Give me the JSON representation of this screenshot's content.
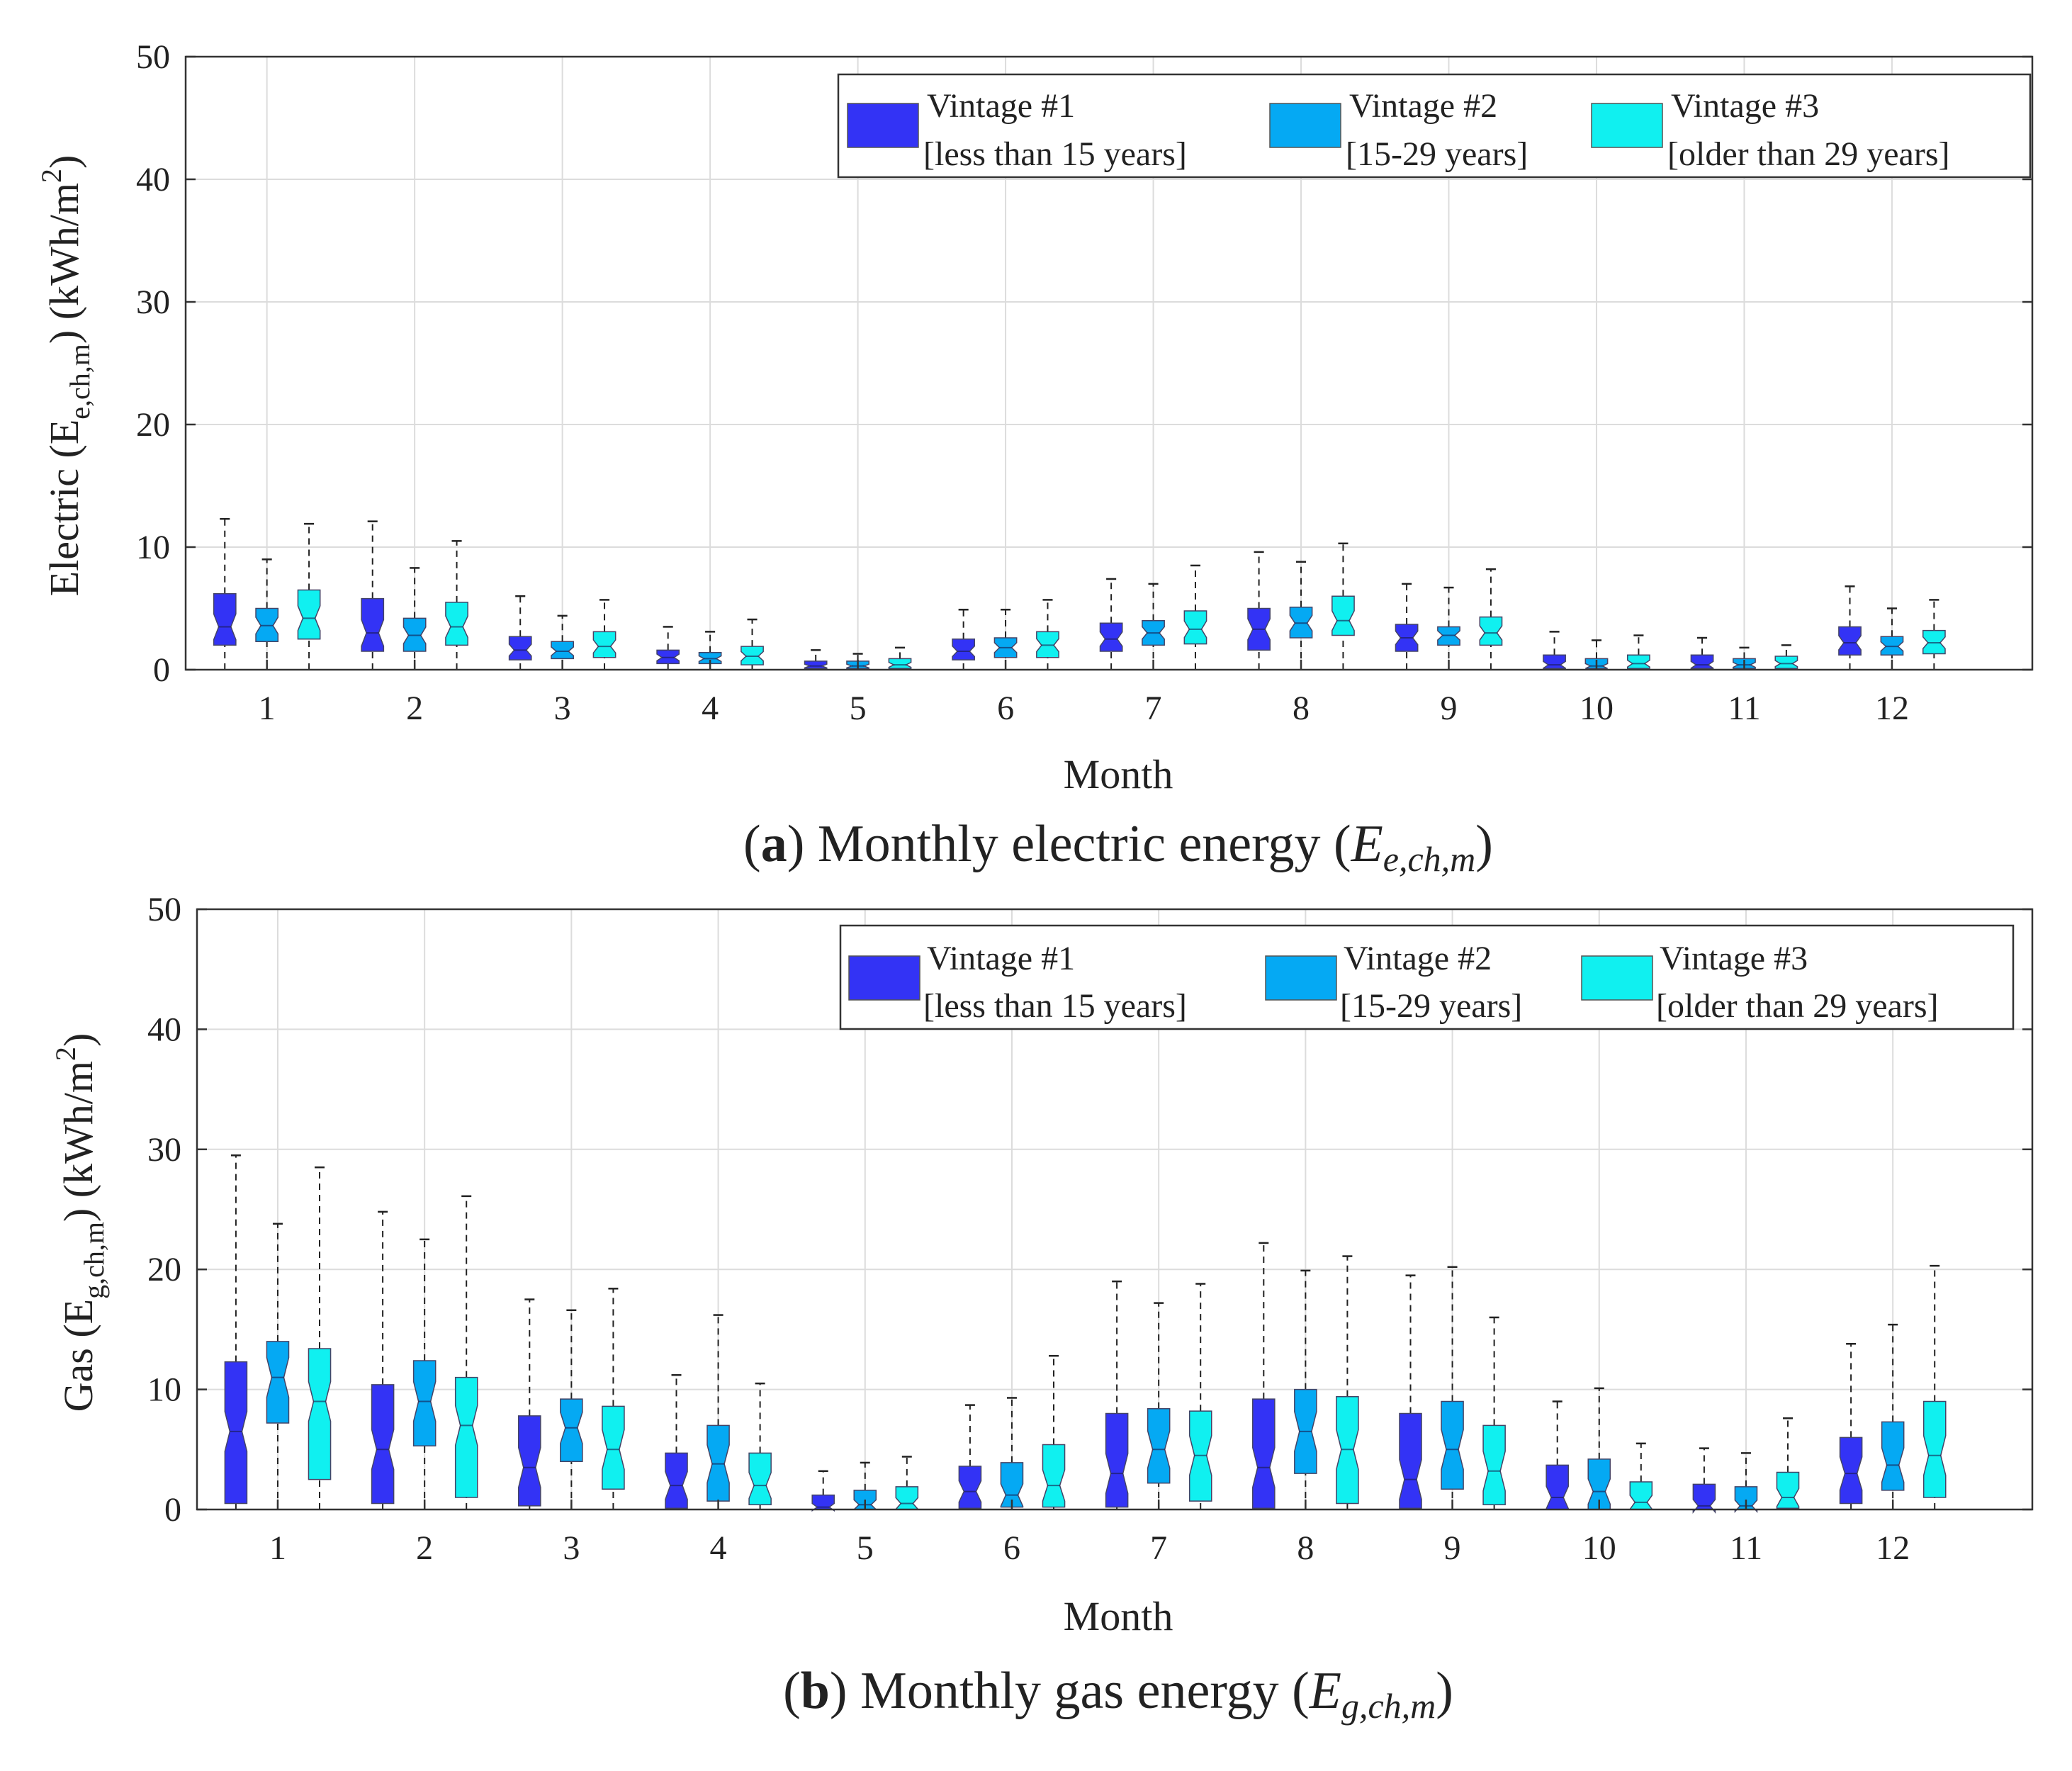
{
  "colors": {
    "vintage1": "#3333f5",
    "vintage2": "#05a9f3",
    "vintage3": "#10f0f0",
    "axis": "#333333",
    "grid": "#dcdcdc",
    "whisker": "#222222"
  },
  "legend": [
    {
      "title": "Vintage #1",
      "range": "[less than 15 years]"
    },
    {
      "title": "Vintage #2",
      "range": "[15-29 years]"
    },
    {
      "title": "Vintage #3",
      "range": "[older than 29 years]"
    }
  ],
  "chart_data": [
    {
      "type": "boxplot",
      "panel": "a",
      "title": "Monthly electric energy",
      "caption_letter": "a",
      "caption_text": ") Monthly electric energy (",
      "caption_symbol": "E",
      "caption_symbol_sub": "e,ch,m",
      "xlabel": "Month",
      "ylabel_prefix": "Electric (E",
      "ylabel_sub": "e,ch,m",
      "ylabel_suffix": ") (kWh/m",
      "ylabel_sup": "2",
      "ylabel_close": ")",
      "ylim": [
        0,
        50
      ],
      "yticks": [
        0,
        10,
        20,
        30,
        40,
        50
      ],
      "categories": [
        "1",
        "2",
        "3",
        "4",
        "5",
        "6",
        "7",
        "8",
        "9",
        "10",
        "11",
        "12"
      ],
      "series": [
        {
          "name": "Vintage #1",
          "boxes": [
            {
              "low": 0,
              "q1": 2.0,
              "median": 3.5,
              "q3": 6.2,
              "high": 12.3
            },
            {
              "low": 0,
              "q1": 1.5,
              "median": 3.0,
              "q3": 5.8,
              "high": 12.1
            },
            {
              "low": 0,
              "q1": 0.8,
              "median": 1.6,
              "q3": 2.7,
              "high": 6.0
            },
            {
              "low": 0,
              "q1": 0.5,
              "median": 1.0,
              "q3": 1.6,
              "high": 3.5
            },
            {
              "low": 0,
              "q1": 0.1,
              "median": 0.3,
              "q3": 0.7,
              "high": 1.6
            },
            {
              "low": 0,
              "q1": 0.8,
              "median": 1.5,
              "q3": 2.5,
              "high": 4.9
            },
            {
              "low": 0,
              "q1": 1.5,
              "median": 2.5,
              "q3": 3.8,
              "high": 7.4
            },
            {
              "low": 0,
              "q1": 1.6,
              "median": 3.3,
              "q3": 5.0,
              "high": 9.6
            },
            {
              "low": 0,
              "q1": 1.5,
              "median": 2.6,
              "q3": 3.7,
              "high": 7.0
            },
            {
              "low": 0,
              "q1": 0.1,
              "median": 0.4,
              "q3": 1.2,
              "high": 3.1
            },
            {
              "low": 0,
              "q1": 0.1,
              "median": 0.4,
              "q3": 1.2,
              "high": 2.6
            },
            {
              "low": 0,
              "q1": 1.2,
              "median": 2.2,
              "q3": 3.5,
              "high": 6.8
            }
          ]
        },
        {
          "name": "Vintage #2",
          "boxes": [
            {
              "low": 0,
              "q1": 2.3,
              "median": 3.6,
              "q3": 5.0,
              "high": 9.0
            },
            {
              "low": 0,
              "q1": 1.5,
              "median": 2.8,
              "q3": 4.2,
              "high": 8.3
            },
            {
              "low": 0,
              "q1": 0.9,
              "median": 1.5,
              "q3": 2.3,
              "high": 4.4
            },
            {
              "low": 0,
              "q1": 0.5,
              "median": 0.9,
              "q3": 1.4,
              "high": 3.1
            },
            {
              "low": 0,
              "q1": 0.1,
              "median": 0.3,
              "q3": 0.7,
              "high": 1.3
            },
            {
              "low": 0,
              "q1": 1.0,
              "median": 1.8,
              "q3": 2.6,
              "high": 4.9
            },
            {
              "low": 0,
              "q1": 2.0,
              "median": 3.0,
              "q3": 4.0,
              "high": 7.0
            },
            {
              "low": 0,
              "q1": 2.6,
              "median": 3.8,
              "q3": 5.1,
              "high": 8.8
            },
            {
              "low": 0,
              "q1": 2.0,
              "median": 2.8,
              "q3": 3.5,
              "high": 6.7
            },
            {
              "low": 0,
              "q1": 0.1,
              "median": 0.3,
              "q3": 0.9,
              "high": 2.4
            },
            {
              "low": 0,
              "q1": 0.1,
              "median": 0.4,
              "q3": 0.9,
              "high": 1.8
            },
            {
              "low": 0,
              "q1": 1.2,
              "median": 1.9,
              "q3": 2.7,
              "high": 5.0
            }
          ]
        },
        {
          "name": "Vintage #3",
          "boxes": [
            {
              "low": 0,
              "q1": 2.5,
              "median": 4.2,
              "q3": 6.5,
              "high": 11.9
            },
            {
              "low": 0,
              "q1": 2.0,
              "median": 3.5,
              "q3": 5.5,
              "high": 10.5
            },
            {
              "low": 0,
              "q1": 1.0,
              "median": 1.9,
              "q3": 3.1,
              "high": 5.7
            },
            {
              "low": 0,
              "q1": 0.4,
              "median": 1.1,
              "q3": 1.9,
              "high": 4.1
            },
            {
              "low": 0,
              "q1": 0.1,
              "median": 0.4,
              "q3": 0.9,
              "high": 1.8
            },
            {
              "low": 0,
              "q1": 1.0,
              "median": 2.0,
              "q3": 3.1,
              "high": 5.7
            },
            {
              "low": 0,
              "q1": 2.1,
              "median": 3.3,
              "q3": 4.8,
              "high": 8.5
            },
            {
              "low": 0,
              "q1": 2.8,
              "median": 4.0,
              "q3": 6.0,
              "high": 10.3
            },
            {
              "low": 0,
              "q1": 2.0,
              "median": 3.0,
              "q3": 4.3,
              "high": 8.2
            },
            {
              "low": 0,
              "q1": 0.1,
              "median": 0.5,
              "q3": 1.2,
              "high": 2.8
            },
            {
              "low": 0,
              "q1": 0.1,
              "median": 0.5,
              "q3": 1.1,
              "high": 2.0
            },
            {
              "low": 0,
              "q1": 1.3,
              "median": 2.2,
              "q3": 3.2,
              "high": 5.7
            }
          ]
        }
      ]
    },
    {
      "type": "boxplot",
      "panel": "b",
      "title": "Monthly gas energy",
      "caption_letter": "b",
      "caption_text": ") Monthly gas energy (",
      "caption_symbol": "E",
      "caption_symbol_sub": "g,ch,m",
      "xlabel": "Month",
      "ylabel_prefix": "Gas (E",
      "ylabel_sub": "g,ch,m",
      "ylabel_suffix": ") (kWh/m",
      "ylabel_sup": "2",
      "ylabel_close": ")",
      "ylim": [
        0,
        50
      ],
      "yticks": [
        0,
        10,
        20,
        30,
        40,
        50
      ],
      "categories": [
        "1",
        "2",
        "3",
        "4",
        "5",
        "6",
        "7",
        "8",
        "9",
        "10",
        "11",
        "12"
      ],
      "series": [
        {
          "name": "Vintage #1",
          "boxes": [
            {
              "low": 0,
              "q1": 0.5,
              "median": 6.5,
              "q3": 12.3,
              "high": 29.5
            },
            {
              "low": 0,
              "q1": 0.5,
              "median": 5.0,
              "q3": 10.4,
              "high": 24.8
            },
            {
              "low": 0,
              "q1": 0.3,
              "median": 3.5,
              "q3": 7.8,
              "high": 17.5
            },
            {
              "low": 0,
              "q1": 0.1,
              "median": 2.0,
              "q3": 4.7,
              "high": 11.2
            },
            {
              "low": 0,
              "q1": 0.0,
              "median": 0.2,
              "q3": 1.2,
              "high": 3.2
            },
            {
              "low": 0,
              "q1": 0.1,
              "median": 1.5,
              "q3": 3.6,
              "high": 8.7
            },
            {
              "low": 0,
              "q1": 0.2,
              "median": 3.0,
              "q3": 8.0,
              "high": 19.0
            },
            {
              "low": 0,
              "q1": 0.1,
              "median": 3.5,
              "q3": 9.2,
              "high": 22.2
            },
            {
              "low": 0,
              "q1": 0.1,
              "median": 2.5,
              "q3": 8.0,
              "high": 19.5
            },
            {
              "low": 0,
              "q1": 0.0,
              "median": 1.0,
              "q3": 3.7,
              "high": 9.0
            },
            {
              "low": 0,
              "q1": 0.0,
              "median": 0.3,
              "q3": 2.1,
              "high": 5.1
            },
            {
              "low": 0,
              "q1": 0.5,
              "median": 3.0,
              "q3": 6.0,
              "high": 13.8
            }
          ]
        },
        {
          "name": "Vintage #2",
          "boxes": [
            {
              "low": 0,
              "q1": 7.2,
              "median": 11.0,
              "q3": 14.0,
              "high": 23.8
            },
            {
              "low": 0,
              "q1": 5.3,
              "median": 9.0,
              "q3": 12.4,
              "high": 22.5
            },
            {
              "low": 0,
              "q1": 4.0,
              "median": 6.8,
              "q3": 9.2,
              "high": 16.6
            },
            {
              "low": 0,
              "q1": 0.7,
              "median": 3.8,
              "q3": 7.0,
              "high": 16.2
            },
            {
              "low": 0,
              "q1": 0.0,
              "median": 0.4,
              "q3": 1.6,
              "high": 3.9
            },
            {
              "low": 0,
              "q1": 0.2,
              "median": 1.2,
              "q3": 3.9,
              "high": 9.3
            },
            {
              "low": 0,
              "q1": 2.2,
              "median": 5.0,
              "q3": 8.4,
              "high": 17.2
            },
            {
              "low": 0,
              "q1": 3.0,
              "median": 6.5,
              "q3": 10.0,
              "high": 19.9
            },
            {
              "low": 0,
              "q1": 1.7,
              "median": 5.0,
              "q3": 9.0,
              "high": 20.2
            },
            {
              "low": 0,
              "q1": 0.0,
              "median": 1.5,
              "q3": 4.2,
              "high": 10.1
            },
            {
              "low": 0,
              "q1": 0.0,
              "median": 0.3,
              "q3": 1.9,
              "high": 4.7
            },
            {
              "low": 0,
              "q1": 1.6,
              "median": 3.7,
              "q3": 7.3,
              "high": 15.4
            }
          ]
        },
        {
          "name": "Vintage #3",
          "boxes": [
            {
              "low": 0,
              "q1": 2.5,
              "median": 9.0,
              "q3": 13.4,
              "high": 28.5
            },
            {
              "low": 0,
              "q1": 1.0,
              "median": 7.0,
              "q3": 11.0,
              "high": 26.1
            },
            {
              "low": 0,
              "q1": 1.7,
              "median": 5.0,
              "q3": 8.6,
              "high": 18.4
            },
            {
              "low": 0,
              "q1": 0.4,
              "median": 2.0,
              "q3": 4.7,
              "high": 10.5
            },
            {
              "low": 0,
              "q1": 0.0,
              "median": 0.5,
              "q3": 1.9,
              "high": 4.4
            },
            {
              "low": 0,
              "q1": 0.2,
              "median": 2.0,
              "q3": 5.4,
              "high": 12.8
            },
            {
              "low": 0,
              "q1": 0.7,
              "median": 4.5,
              "q3": 8.2,
              "high": 18.8
            },
            {
              "low": 0,
              "q1": 0.5,
              "median": 5.0,
              "q3": 9.4,
              "high": 21.1
            },
            {
              "low": 0,
              "q1": 0.4,
              "median": 3.2,
              "q3": 7.0,
              "high": 16.0
            },
            {
              "low": 0,
              "q1": 0.0,
              "median": 0.6,
              "q3": 2.3,
              "high": 5.5
            },
            {
              "low": 0,
              "q1": 0.1,
              "median": 1.0,
              "q3": 3.1,
              "high": 7.6
            },
            {
              "low": 0,
              "q1": 1.0,
              "median": 4.5,
              "q3": 9.0,
              "high": 20.3
            }
          ]
        }
      ]
    }
  ]
}
